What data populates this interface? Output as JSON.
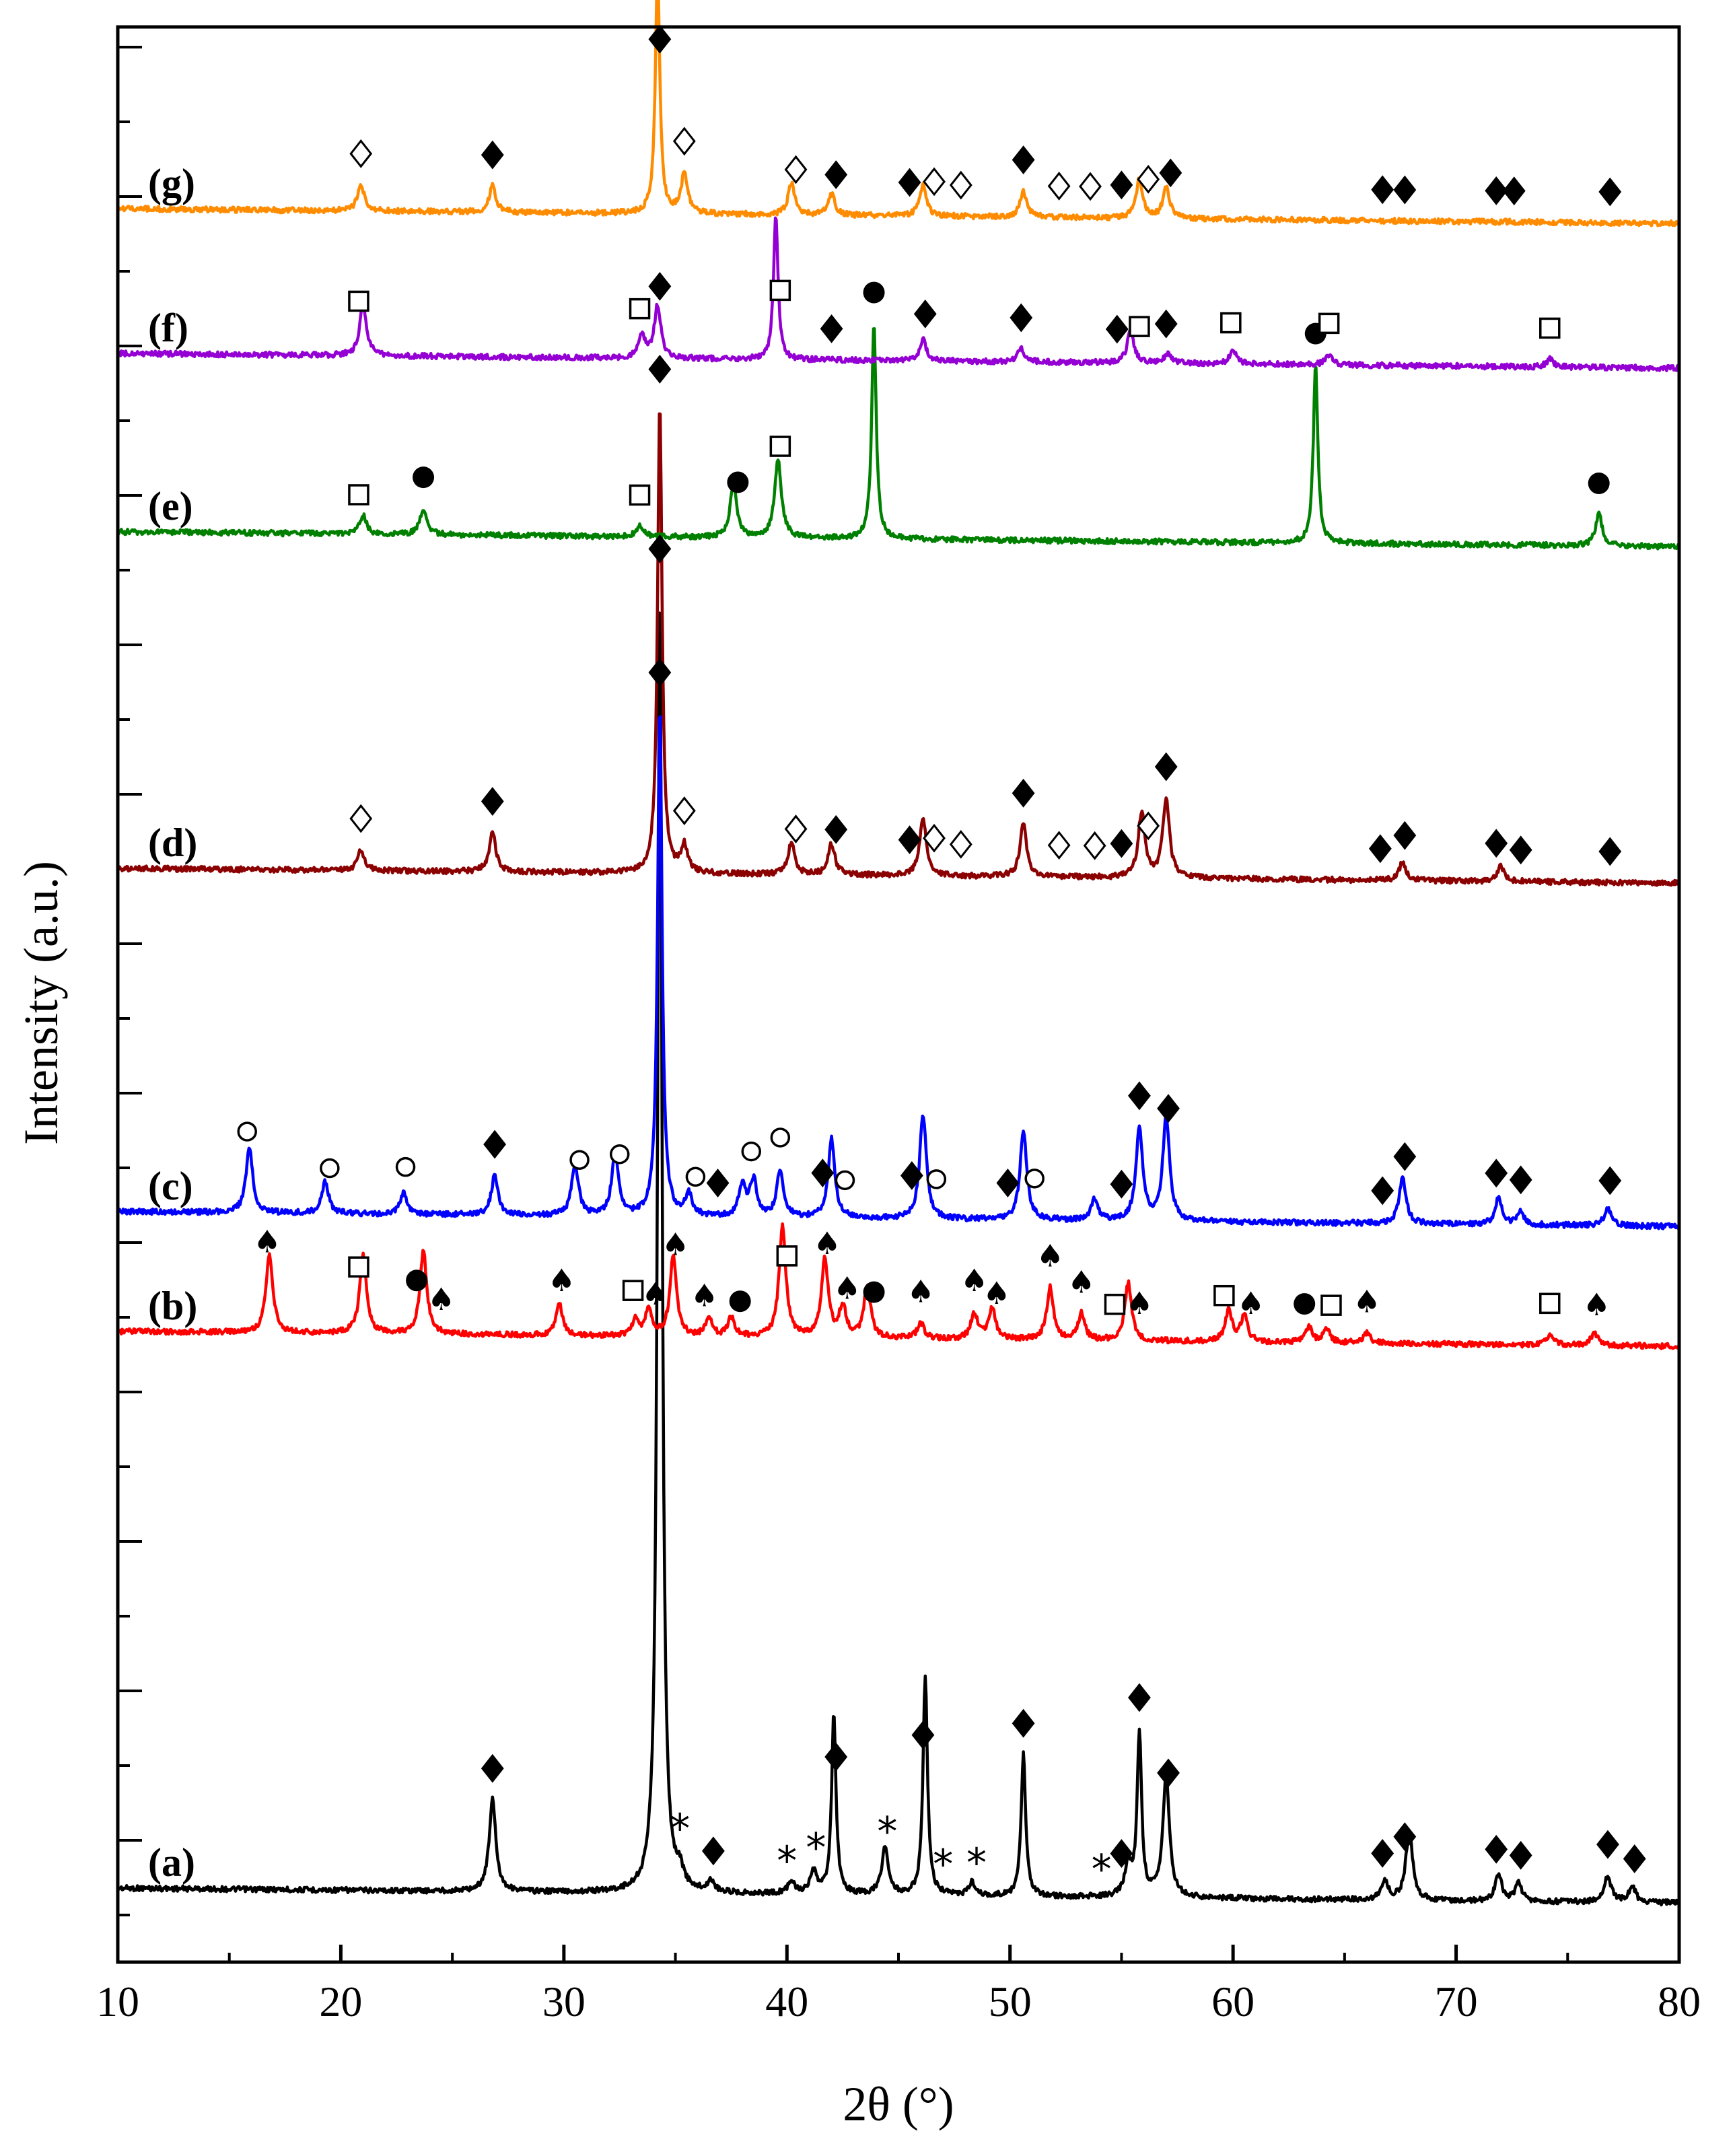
{
  "chart_data": {
    "type": "line",
    "title": "",
    "xlabel": "2θ (°)",
    "ylabel": "Intensity (a.u.)",
    "xlim": [
      10,
      80
    ],
    "xticks": [
      10,
      20,
      30,
      40,
      50,
      60,
      70,
      80
    ],
    "yticks_shown": false,
    "grid": false,
    "legend": "none",
    "marker_symbols": {
      "diamond_filled": "◆",
      "diamond_open": "◇",
      "square_open": "□",
      "circle_filled": "●",
      "circle_open": "○",
      "spade": "♠",
      "asterisk": "*"
    },
    "series": [
      {
        "name": "(a)",
        "color": "#000000",
        "peaks": [
          [
            26.8,
            0.035
          ],
          [
            34.3,
            0.5
          ],
          [
            35.2,
            0.006
          ],
          [
            36.6,
            0.004
          ],
          [
            40.2,
            0.005
          ],
          [
            41.2,
            0.008
          ],
          [
            42.1,
            0.068
          ],
          [
            44.4,
            0.018
          ],
          [
            46.2,
            0.083
          ],
          [
            48.3,
            0.005
          ],
          [
            50.6,
            0.054
          ],
          [
            55.3,
            0.012
          ],
          [
            55.8,
            0.062
          ],
          [
            57.0,
            0.046
          ],
          [
            66.8,
            0.007
          ],
          [
            67.9,
            0.027
          ],
          [
            71.9,
            0.01
          ],
          [
            72.8,
            0.007
          ],
          [
            76.8,
            0.01
          ],
          [
            77.9,
            0.006
          ]
        ],
        "markers": [
          {
            "x": 26.8,
            "symbol": "diamond_filled"
          },
          {
            "x": 34.3,
            "symbol": "diamond_filled"
          },
          {
            "x": 35.2,
            "symbol": "asterisk"
          },
          {
            "x": 36.7,
            "symbol": "diamond_filled"
          },
          {
            "x": 40.0,
            "symbol": "asterisk"
          },
          {
            "x": 41.3,
            "symbol": "asterisk"
          },
          {
            "x": 42.2,
            "symbol": "diamond_filled"
          },
          {
            "x": 44.5,
            "symbol": "asterisk"
          },
          {
            "x": 46.1,
            "symbol": "diamond_filled"
          },
          {
            "x": 47.0,
            "symbol": "asterisk"
          },
          {
            "x": 48.5,
            "symbol": "asterisk"
          },
          {
            "x": 50.6,
            "symbol": "diamond_filled"
          },
          {
            "x": 54.1,
            "symbol": "asterisk"
          },
          {
            "x": 55.0,
            "symbol": "diamond_filled"
          },
          {
            "x": 55.8,
            "symbol": "diamond_filled"
          },
          {
            "x": 57.1,
            "symbol": "diamond_filled"
          },
          {
            "x": 66.7,
            "symbol": "diamond_filled"
          },
          {
            "x": 67.7,
            "symbol": "diamond_filled"
          },
          {
            "x": 71.8,
            "symbol": "diamond_filled"
          },
          {
            "x": 72.9,
            "symbol": "diamond_filled"
          },
          {
            "x": 76.8,
            "symbol": "diamond_filled"
          },
          {
            "x": 78.0,
            "symbol": "diamond_filled"
          }
        ]
      },
      {
        "name": "(b)",
        "color": "#ff0000",
        "peaks": [
          [
            16.8,
            0.03
          ],
          [
            21.0,
            0.03
          ],
          [
            23.7,
            0.032
          ],
          [
            29.8,
            0.012
          ],
          [
            33.2,
            0.006
          ],
          [
            33.8,
            0.01
          ],
          [
            34.9,
            0.03
          ],
          [
            36.5,
            0.007
          ],
          [
            37.5,
            0.007
          ],
          [
            39.8,
            0.042
          ],
          [
            41.7,
            0.03
          ],
          [
            42.5,
            0.012
          ],
          [
            43.6,
            0.02
          ],
          [
            46.0,
            0.006
          ],
          [
            48.4,
            0.01
          ],
          [
            49.2,
            0.012
          ],
          [
            51.8,
            0.02
          ],
          [
            53.2,
            0.01
          ],
          [
            55.3,
            0.022
          ],
          [
            59.8,
            0.012
          ],
          [
            60.5,
            0.01
          ],
          [
            63.4,
            0.006
          ],
          [
            64.2,
            0.005
          ],
          [
            66.0,
            0.004
          ],
          [
            74.2,
            0.004
          ],
          [
            76.2,
            0.005
          ]
        ],
        "markers": [
          {
            "x": 16.7,
            "symbol": "spade"
          },
          {
            "x": 20.8,
            "symbol": "square_open"
          },
          {
            "x": 23.4,
            "symbol": "circle_filled"
          },
          {
            "x": 24.5,
            "symbol": "spade"
          },
          {
            "x": 29.9,
            "symbol": "spade"
          },
          {
            "x": 33.1,
            "symbol": "square_open"
          },
          {
            "x": 34.1,
            "symbol": "spade"
          },
          {
            "x": 35.0,
            "symbol": "spade"
          },
          {
            "x": 36.3,
            "symbol": "spade"
          },
          {
            "x": 37.9,
            "symbol": "circle_filled"
          },
          {
            "x": 40.0,
            "symbol": "square_open"
          },
          {
            "x": 41.8,
            "symbol": "spade"
          },
          {
            "x": 42.7,
            "symbol": "spade"
          },
          {
            "x": 43.9,
            "symbol": "circle_filled"
          },
          {
            "x": 46.0,
            "symbol": "spade"
          },
          {
            "x": 48.4,
            "symbol": "spade"
          },
          {
            "x": 49.4,
            "symbol": "spade"
          },
          {
            "x": 51.8,
            "symbol": "spade"
          },
          {
            "x": 53.2,
            "symbol": "spade"
          },
          {
            "x": 54.7,
            "symbol": "square_open"
          },
          {
            "x": 55.8,
            "symbol": "spade"
          },
          {
            "x": 59.6,
            "symbol": "square_open"
          },
          {
            "x": 60.8,
            "symbol": "spade"
          },
          {
            "x": 63.2,
            "symbol": "circle_filled"
          },
          {
            "x": 64.4,
            "symbol": "square_open"
          },
          {
            "x": 66.0,
            "symbol": "spade"
          },
          {
            "x": 74.2,
            "symbol": "square_open"
          },
          {
            "x": 76.3,
            "symbol": "spade"
          }
        ]
      },
      {
        "name": "(c)",
        "color": "#0000ff",
        "peaks": [
          [
            15.9,
            0.025
          ],
          [
            19.3,
            0.012
          ],
          [
            22.8,
            0.008
          ],
          [
            26.9,
            0.015
          ],
          [
            30.5,
            0.02
          ],
          [
            32.3,
            0.024
          ],
          [
            34.3,
            0.195
          ],
          [
            35.6,
            0.008
          ],
          [
            38.0,
            0.012
          ],
          [
            38.5,
            0.014
          ],
          [
            39.7,
            0.018
          ],
          [
            42.0,
            0.03
          ],
          [
            46.1,
            0.04
          ],
          [
            50.6,
            0.034
          ],
          [
            53.8,
            0.008
          ],
          [
            55.8,
            0.035
          ],
          [
            57.0,
            0.04
          ],
          [
            67.6,
            0.018
          ],
          [
            71.9,
            0.01
          ],
          [
            72.9,
            0.005
          ],
          [
            76.8,
            0.007
          ]
        ],
        "markers": [
          {
            "x": 15.8,
            "symbol": "circle_open"
          },
          {
            "x": 19.5,
            "symbol": "circle_open"
          },
          {
            "x": 22.9,
            "symbol": "circle_open"
          },
          {
            "x": 26.9,
            "symbol": "diamond_filled"
          },
          {
            "x": 30.7,
            "symbol": "circle_open"
          },
          {
            "x": 32.5,
            "symbol": "circle_open"
          },
          {
            "x": 34.3,
            "symbol": "diamond_filled"
          },
          {
            "x": 35.9,
            "symbol": "circle_open"
          },
          {
            "x": 36.9,
            "symbol": "diamond_filled"
          },
          {
            "x": 38.4,
            "symbol": "circle_open"
          },
          {
            "x": 39.7,
            "symbol": "circle_open"
          },
          {
            "x": 41.6,
            "symbol": "diamond_filled"
          },
          {
            "x": 42.6,
            "symbol": "circle_open"
          },
          {
            "x": 45.6,
            "symbol": "diamond_filled"
          },
          {
            "x": 46.7,
            "symbol": "circle_open"
          },
          {
            "x": 49.9,
            "symbol": "diamond_filled"
          },
          {
            "x": 51.1,
            "symbol": "circle_open"
          },
          {
            "x": 55.0,
            "symbol": "diamond_filled"
          },
          {
            "x": 55.8,
            "symbol": "diamond_filled"
          },
          {
            "x": 57.1,
            "symbol": "diamond_filled"
          },
          {
            "x": 66.7,
            "symbol": "diamond_filled"
          },
          {
            "x": 67.7,
            "symbol": "diamond_filled"
          },
          {
            "x": 71.8,
            "symbol": "diamond_filled"
          },
          {
            "x": 72.9,
            "symbol": "diamond_filled"
          },
          {
            "x": 76.9,
            "symbol": "diamond_filled"
          }
        ]
      },
      {
        "name": "(d)",
        "color": "#8b0000",
        "peaks": [
          [
            20.9,
            0.008
          ],
          [
            26.8,
            0.015
          ],
          [
            34.3,
            0.18
          ],
          [
            35.4,
            0.01
          ],
          [
            40.2,
            0.012
          ],
          [
            42.0,
            0.012
          ],
          [
            46.1,
            0.022
          ],
          [
            50.6,
            0.02
          ],
          [
            55.9,
            0.025
          ],
          [
            57.0,
            0.03
          ],
          [
            67.6,
            0.007
          ],
          [
            72.0,
            0.006
          ]
        ],
        "markers": [
          {
            "x": 20.9,
            "symbol": "diamond_open"
          },
          {
            "x": 26.8,
            "symbol": "diamond_filled"
          },
          {
            "x": 34.3,
            "symbol": "diamond_filled"
          },
          {
            "x": 35.4,
            "symbol": "diamond_open"
          },
          {
            "x": 40.4,
            "symbol": "diamond_open"
          },
          {
            "x": 42.2,
            "symbol": "diamond_filled"
          },
          {
            "x": 45.5,
            "symbol": "diamond_filled"
          },
          {
            "x": 46.6,
            "symbol": "diamond_open"
          },
          {
            "x": 47.8,
            "symbol": "diamond_open"
          },
          {
            "x": 50.6,
            "symbol": "diamond_filled"
          },
          {
            "x": 52.2,
            "symbol": "diamond_open"
          },
          {
            "x": 53.8,
            "symbol": "diamond_open"
          },
          {
            "x": 55.0,
            "symbol": "diamond_filled"
          },
          {
            "x": 56.2,
            "symbol": "diamond_open"
          },
          {
            "x": 57.0,
            "symbol": "diamond_filled"
          },
          {
            "x": 66.6,
            "symbol": "diamond_filled"
          },
          {
            "x": 67.7,
            "symbol": "diamond_filled"
          },
          {
            "x": 71.8,
            "symbol": "diamond_filled"
          },
          {
            "x": 72.9,
            "symbol": "diamond_filled"
          },
          {
            "x": 76.9,
            "symbol": "diamond_filled"
          }
        ]
      },
      {
        "name": "(e)",
        "color": "#008000",
        "peaks": [
          [
            21.0,
            0.007
          ],
          [
            23.7,
            0.01
          ],
          [
            33.4,
            0.004
          ],
          [
            37.6,
            0.02
          ],
          [
            39.6,
            0.03
          ],
          [
            43.9,
            0.082
          ],
          [
            63.7,
            0.068
          ],
          [
            76.4,
            0.012
          ]
        ],
        "markers": [
          {
            "x": 20.8,
            "symbol": "square_open"
          },
          {
            "x": 23.7,
            "symbol": "circle_filled"
          },
          {
            "x": 33.4,
            "symbol": "square_open"
          },
          {
            "x": 37.8,
            "symbol": "circle_filled"
          },
          {
            "x": 39.7,
            "symbol": "square_open"
          },
          {
            "x": 43.9,
            "symbol": "circle_filled"
          },
          {
            "x": 63.7,
            "symbol": "circle_filled"
          },
          {
            "x": 76.4,
            "symbol": "circle_filled"
          }
        ]
      },
      {
        "name": "(f)",
        "color": "#9400d3",
        "peaks": [
          [
            21.0,
            0.02
          ],
          [
            33.5,
            0.008
          ],
          [
            34.2,
            0.02
          ],
          [
            39.5,
            0.055
          ],
          [
            46.1,
            0.008
          ],
          [
            50.5,
            0.005
          ],
          [
            55.4,
            0.012
          ],
          [
            57.1,
            0.004
          ],
          [
            60.0,
            0.005
          ],
          [
            64.3,
            0.004
          ],
          [
            74.2,
            0.003
          ]
        ],
        "markers": [
          {
            "x": 20.8,
            "symbol": "square_open"
          },
          {
            "x": 33.4,
            "symbol": "square_open"
          },
          {
            "x": 34.3,
            "symbol": "diamond_filled"
          },
          {
            "x": 39.7,
            "symbol": "square_open"
          },
          {
            "x": 42.0,
            "symbol": "diamond_filled"
          },
          {
            "x": 46.2,
            "symbol": "diamond_filled"
          },
          {
            "x": 50.5,
            "symbol": "diamond_filled"
          },
          {
            "x": 54.8,
            "symbol": "diamond_filled"
          },
          {
            "x": 55.8,
            "symbol": "square_open"
          },
          {
            "x": 57.0,
            "symbol": "diamond_filled"
          },
          {
            "x": 59.9,
            "symbol": "square_open"
          },
          {
            "x": 64.3,
            "symbol": "square_open"
          },
          {
            "x": 74.2,
            "symbol": "square_open"
          }
        ]
      },
      {
        "name": "(g)",
        "color": "#ff8c00",
        "peaks": [
          [
            20.9,
            0.01
          ],
          [
            26.8,
            0.01
          ],
          [
            34.2,
            0.092
          ],
          [
            35.4,
            0.015
          ],
          [
            40.2,
            0.012
          ],
          [
            42.0,
            0.008
          ],
          [
            46.1,
            0.012
          ],
          [
            50.6,
            0.01
          ],
          [
            55.8,
            0.015
          ],
          [
            57.0,
            0.012
          ]
        ],
        "markers": [
          {
            "x": 20.9,
            "symbol": "diamond_open"
          },
          {
            "x": 26.8,
            "symbol": "diamond_filled"
          },
          {
            "x": 34.3,
            "symbol": "diamond_filled"
          },
          {
            "x": 35.4,
            "symbol": "diamond_open"
          },
          {
            "x": 40.4,
            "symbol": "diamond_open"
          },
          {
            "x": 42.2,
            "symbol": "diamond_filled"
          },
          {
            "x": 45.5,
            "symbol": "diamond_filled"
          },
          {
            "x": 46.6,
            "symbol": "diamond_open"
          },
          {
            "x": 47.8,
            "symbol": "diamond_open"
          },
          {
            "x": 50.6,
            "symbol": "diamond_filled"
          },
          {
            "x": 52.2,
            "symbol": "diamond_open"
          },
          {
            "x": 53.6,
            "symbol": "diamond_open"
          },
          {
            "x": 55.0,
            "symbol": "diamond_filled"
          },
          {
            "x": 56.2,
            "symbol": "diamond_open"
          },
          {
            "x": 57.2,
            "symbol": "diamond_filled"
          },
          {
            "x": 66.7,
            "symbol": "diamond_filled"
          },
          {
            "x": 67.7,
            "symbol": "diamond_filled"
          },
          {
            "x": 71.8,
            "symbol": "diamond_filled"
          },
          {
            "x": 72.6,
            "symbol": "diamond_filled"
          },
          {
            "x": 76.9,
            "symbol": "diamond_filled"
          }
        ]
      }
    ]
  }
}
